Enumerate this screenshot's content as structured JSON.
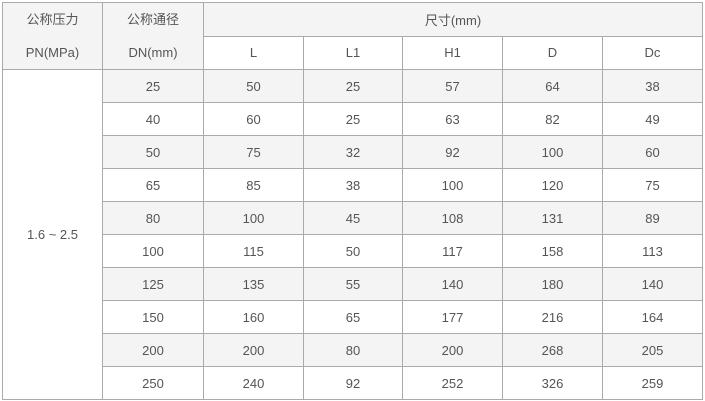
{
  "header": {
    "pressure_label": "公称压力",
    "pressure_unit": "PN(MPa)",
    "diameter_label": "公称通径",
    "diameter_unit": "DN(mm)",
    "dimensions_label": "尺寸(mm)",
    "columns": [
      "L",
      "L1",
      "H1",
      "D",
      "Dc"
    ]
  },
  "pressure_value": "1.6 ~ 2.5",
  "rows": [
    [
      "25",
      "50",
      "25",
      "57",
      "64",
      "38"
    ],
    [
      "40",
      "60",
      "25",
      "63",
      "82",
      "49"
    ],
    [
      "50",
      "75",
      "32",
      "92",
      "100",
      "60"
    ],
    [
      "65",
      "85",
      "38",
      "100",
      "120",
      "75"
    ],
    [
      "80",
      "100",
      "45",
      "108",
      "131",
      "89"
    ],
    [
      "100",
      "115",
      "50",
      "117",
      "158",
      "113"
    ],
    [
      "125",
      "135",
      "55",
      "140",
      "180",
      "140"
    ],
    [
      "150",
      "160",
      "65",
      "177",
      "216",
      "164"
    ],
    [
      "200",
      "200",
      "80",
      "200",
      "268",
      "205"
    ],
    [
      "250",
      "240",
      "92",
      "252",
      "326",
      "259"
    ]
  ]
}
